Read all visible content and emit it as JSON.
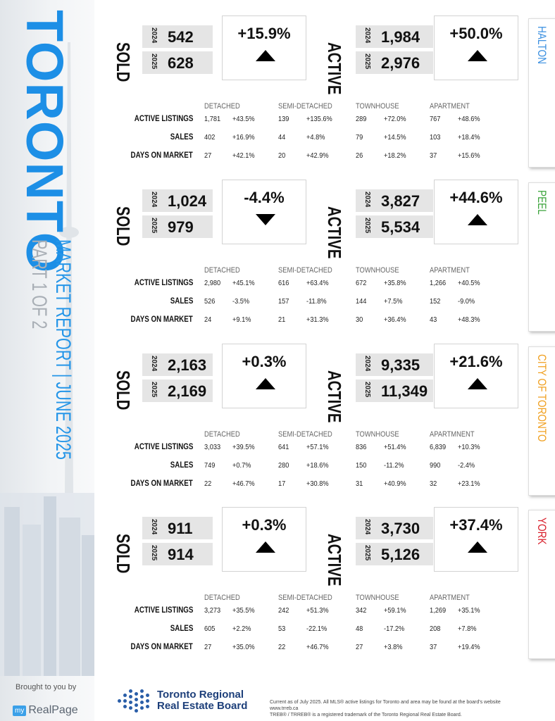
{
  "sidebar": {
    "title": "TORONTO",
    "subtitle": "MARKET REPORT  |  JUNE 2025",
    "part": "PART 1 OF 2",
    "brought": "Brought to you by",
    "brand_my": "my",
    "brand_name": "RealPage"
  },
  "labels": {
    "sold": "SOLD",
    "active": "ACTIVE",
    "y1": "2024",
    "y2": "2025",
    "active_listings": "ACTIVE LISTINGS",
    "sales": "SALES",
    "dom": "DAYS ON MARKET"
  },
  "sections": [
    {
      "region": "HALTON",
      "region_color": "#3a8fe0",
      "sold_2024": "542",
      "sold_2025": "628",
      "sold_pct": "+15.9%",
      "sold_dir": "up",
      "active_2024": "1,984",
      "active_2025": "2,976",
      "active_pct": "+50.0%",
      "active_dir": "up",
      "headers": [
        "DETACHED",
        "SEMI-DETACHED",
        "TOWNHOUSE",
        "APARTMENT"
      ],
      "active_listings": [
        "1,781",
        "+43.5%",
        "139",
        "+135.6%",
        "289",
        "+72.0%",
        "767",
        "+48.6%"
      ],
      "sales": [
        "402",
        "+16.9%",
        "44",
        "+4.8%",
        "79",
        "+14.5%",
        "103",
        "+18.4%"
      ],
      "dom": [
        "27",
        "+42.1%",
        "20",
        "+42.9%",
        "26",
        "+18.2%",
        "37",
        "+15.6%"
      ]
    },
    {
      "region": "PEEL",
      "region_color": "#3aa33a",
      "sold_2024": "1,024",
      "sold_2025": "979",
      "sold_pct": "-4.4%",
      "sold_dir": "down",
      "active_2024": "3,827",
      "active_2025": "5,534",
      "active_pct": "+44.6%",
      "active_dir": "up",
      "headers": [
        "DETACHED",
        "SEMI-DETACHED",
        "TOWNHOUSE",
        "APARTMENT"
      ],
      "active_listings": [
        "2,980",
        "+45.1%",
        "616",
        "+63.4%",
        "672",
        "+35.8%",
        "1,266",
        "+40.5%"
      ],
      "sales": [
        "526",
        "-3.5%",
        "157",
        "-11.8%",
        "144",
        "+7.5%",
        "152",
        "-9.0%"
      ],
      "dom": [
        "24",
        "+9.1%",
        "21",
        "+31.3%",
        "30",
        "+36.4%",
        "43",
        "+48.3%"
      ]
    },
    {
      "region": "CITY OF TORONTO",
      "region_color": "#f0a020",
      "sold_2024": "2,163",
      "sold_2025": "2,169",
      "sold_pct": "+0.3%",
      "sold_dir": "up",
      "active_2024": "9,335",
      "active_2025": "11,349",
      "active_pct": "+21.6%",
      "active_dir": "up",
      "headers": [
        "DETACHED",
        "SEMI-DETACHED",
        "TOWNHOUSE",
        "APARTMNENT"
      ],
      "active_listings": [
        "3,033",
        "+39.5%",
        "641",
        "+57.1%",
        "836",
        "+51.4%",
        "6,839",
        "+10.3%"
      ],
      "sales": [
        "749",
        "+0.7%",
        "280",
        "+18.6%",
        "150",
        "-11.2%",
        "990",
        "-2.4%"
      ],
      "dom": [
        "22",
        "+46.7%",
        "17",
        "+30.8%",
        "31",
        "+40.9%",
        "32",
        "+23.1%"
      ]
    },
    {
      "region": "YORK",
      "region_color": "#d81e2a",
      "sold_2024": "911",
      "sold_2025": "914",
      "sold_pct": "+0.3%",
      "sold_dir": "up",
      "active_2024": "3,730",
      "active_2025": "5,126",
      "active_pct": "+37.4%",
      "active_dir": "up",
      "headers": [
        "DETACHED",
        "SEMI-DETACHED",
        "TOWNHOUSE",
        "APARTMENT"
      ],
      "active_listings": [
        "3,273",
        "+35.5%",
        "242",
        "+51.3%",
        "342",
        "+59.1%",
        "1,269",
        "+35.1%"
      ],
      "sales": [
        "605",
        "+2.2%",
        "53",
        "-22.1%",
        "48",
        "-17.2%",
        "208",
        "+7.8%"
      ],
      "dom": [
        "27",
        "+35.0%",
        "22",
        "+46.7%",
        "27",
        "+3.8%",
        "37",
        "+19.4%"
      ]
    }
  ],
  "footer": {
    "trreb_line1": "Toronto Regional",
    "trreb_line2": "Real Estate Board",
    "note1": "Current as of July 2025. All MLS® active listings for Toronto and area may be found at the board's website www.trreb.ca",
    "note2": "TREB® / TRREB® is a registered trademark of the Toronto Regional Real Estate Board."
  }
}
